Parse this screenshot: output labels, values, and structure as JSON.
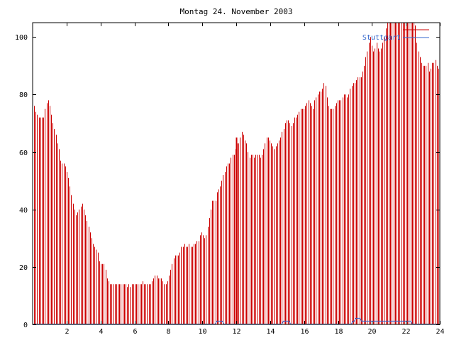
{
  "chart_data": {
    "type": "bar",
    "title": "Montag 24. November 2003",
    "xlabel": "",
    "ylabel": "",
    "xlim": [
      0,
      24
    ],
    "ylim": [
      0,
      105
    ],
    "grid": false,
    "legend_position": "top-right",
    "x_ticks": [
      "2",
      "4",
      "6",
      "8",
      "10",
      "12",
      "14",
      "16",
      "18",
      "20",
      "22",
      "24"
    ],
    "y_ticks": [
      "0",
      "20",
      "40",
      "60",
      "80",
      "100"
    ],
    "series": [
      {
        "name": "",
        "legend_label": "",
        "color": "#cc0000",
        "values": [
          76,
          74,
          73,
          72,
          72,
          72,
          72,
          75,
          77,
          78,
          76,
          73,
          70,
          68,
          66,
          63,
          61,
          57,
          56,
          56,
          55,
          53,
          51,
          48,
          45,
          42,
          40,
          38,
          39,
          40,
          41,
          42,
          40,
          38,
          36,
          34,
          32,
          30,
          28,
          27,
          26,
          25,
          22,
          21,
          21,
          21,
          19,
          16,
          15,
          14,
          14,
          14,
          14,
          14,
          14,
          14,
          14,
          14,
          14,
          14,
          13,
          14,
          13,
          14,
          14,
          14,
          14,
          14,
          14,
          14,
          15,
          14,
          14,
          14,
          14,
          14,
          15,
          16,
          17,
          17,
          16,
          16,
          16,
          15,
          14,
          14,
          15,
          17,
          19,
          21,
          23,
          24,
          24,
          24,
          25,
          27,
          27,
          28,
          27,
          27,
          28,
          27,
          27,
          28,
          28,
          29,
          29,
          31,
          32,
          31,
          30,
          31,
          34,
          37,
          40,
          43,
          43,
          43,
          46,
          47,
          48,
          50,
          52,
          53,
          55,
          56,
          56,
          58,
          59,
          59,
          61,
          63,
          63,
          65,
          67,
          66,
          64,
          63,
          60,
          58,
          59,
          59,
          58,
          59,
          59,
          59,
          58,
          59,
          61,
          63,
          65,
          65,
          64,
          63,
          62,
          61,
          62,
          63,
          64,
          65,
          67,
          68,
          70,
          71,
          71,
          70,
          69,
          70,
          72,
          72,
          73,
          74,
          75,
          75,
          75,
          76,
          77,
          78,
          77,
          76,
          75,
          78,
          79,
          80,
          81,
          81,
          82,
          84,
          83,
          79,
          76,
          75,
          75,
          75,
          76,
          77,
          78,
          78,
          78,
          79,
          80,
          80,
          79,
          80,
          82,
          83,
          84,
          84,
          85,
          86,
          86,
          86,
          88,
          90,
          93,
          95,
          98,
          100,
          97,
          95,
          96,
          98,
          96,
          95,
          96,
          98,
          100,
          103,
          105,
          105,
          105,
          105,
          105,
          105,
          105,
          105,
          105,
          105,
          105,
          105,
          105,
          105,
          105,
          105,
          105,
          105,
          104,
          98,
          95,
          93,
          91,
          90,
          90,
          90,
          91,
          88,
          89,
          91,
          91,
          92,
          90,
          89
        ]
      },
      {
        "name": "Stuttgart",
        "legend_label": "Stuttgart",
        "color": "#3366cc",
        "values": [
          0,
          0,
          0,
          0,
          0,
          0,
          0,
          0,
          0,
          0,
          0,
          0,
          0,
          0,
          0,
          0,
          0,
          0,
          0,
          0,
          0,
          0,
          0,
          0,
          0,
          0,
          0,
          0,
          0,
          0,
          0,
          0,
          0,
          0,
          0,
          0,
          0,
          0,
          0,
          0,
          0,
          0,
          0,
          0,
          0,
          0,
          0,
          0,
          0,
          0,
          0,
          0,
          0,
          0,
          0,
          0,
          0,
          0,
          0,
          0,
          0,
          0,
          0,
          0,
          0,
          0,
          0,
          0,
          0,
          0,
          0,
          0,
          0,
          0,
          0,
          0,
          0,
          0,
          0,
          0,
          0,
          0,
          0,
          0,
          0,
          0,
          0,
          0,
          0,
          0,
          0,
          0,
          0,
          0,
          0,
          0,
          0,
          0,
          0,
          0,
          0,
          0,
          0,
          0,
          0,
          0,
          0,
          0,
          0,
          0,
          0,
          0,
          0,
          0,
          0,
          0,
          0,
          0,
          0,
          0,
          0,
          0,
          0,
          0,
          0,
          0,
          1,
          1,
          1,
          1,
          1,
          0,
          0,
          0,
          0,
          0,
          0,
          0,
          0,
          0,
          0,
          0,
          0,
          0,
          0,
          0,
          0,
          0,
          0,
          0,
          0,
          0,
          0,
          0,
          0,
          0,
          0,
          0,
          0,
          0,
          0,
          0,
          0,
          0,
          0,
          0,
          0,
          0,
          0,
          0,
          0,
          0,
          1,
          1,
          1,
          1,
          1,
          0,
          0,
          0,
          0,
          0,
          0,
          0,
          0,
          0,
          0,
          0,
          0,
          0,
          0,
          0,
          0,
          0,
          0,
          0,
          0,
          0,
          0,
          0,
          0,
          0,
          0,
          0,
          0,
          0,
          0,
          0,
          0,
          0,
          0,
          0,
          0,
          0,
          0,
          0,
          0,
          0,
          0,
          0,
          1,
          1,
          2,
          2,
          2,
          2,
          1,
          1,
          1,
          1,
          1,
          1,
          1,
          1,
          1,
          1,
          1,
          1,
          1,
          1,
          1,
          1,
          1,
          1,
          1,
          1,
          1,
          1,
          1,
          1,
          1,
          1,
          1,
          1,
          1,
          1,
          1,
          1,
          1,
          1,
          1,
          0,
          0,
          0,
          0,
          0,
          0,
          0,
          0,
          0,
          0,
          0,
          0,
          0,
          0,
          0,
          0,
          0,
          0,
          0
        ]
      }
    ],
    "annotations": [
      {
        "x": 12.0,
        "value": 65
      }
    ]
  }
}
